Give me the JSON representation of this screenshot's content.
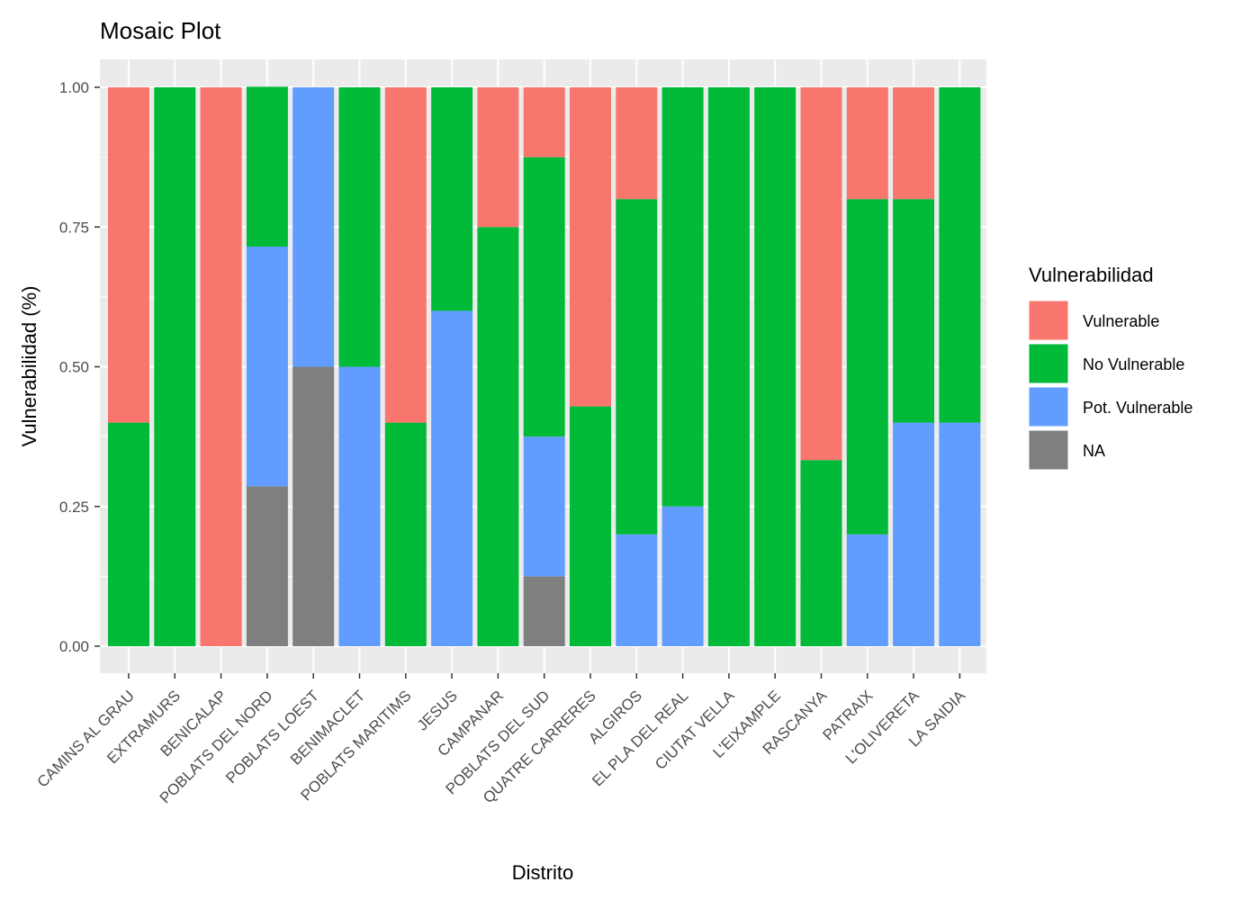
{
  "chart_data": {
    "type": "bar",
    "stacked": true,
    "title": "Mosaic Plot",
    "xlabel": "Distrito",
    "ylabel": "Vulnerabilidad (%)",
    "ylim": [
      0,
      1
    ],
    "yticks": [
      "0.00",
      "0.25",
      "0.50",
      "0.75",
      "1.00"
    ],
    "ytick_values": [
      0,
      0.25,
      0.5,
      0.75,
      1.0
    ],
    "grid": true,
    "legend_position": "right",
    "legend_title": "Vulnerabilidad",
    "categories": [
      "CAMINS AL GRAU",
      "EXTRAMURS",
      "BENICALAP",
      "POBLATS DEL NORD",
      "POBLATS LOEST",
      "BENIMACLET",
      "POBLATS MARITIMS",
      "JESUS",
      "CAMPANAR",
      "POBLATS DEL SUD",
      "QUATRE CARRERES",
      "ALGIROS",
      "EL PLA DEL REAL",
      "CIUTAT VELLA",
      "L'EIXAMPLE",
      "RASCANYA",
      "PATRAIX",
      "L'OLIVERETA",
      "LA SAIDIA"
    ],
    "series": [
      {
        "name": "Vulnerable",
        "color": "#F8766D",
        "values": [
          0.6,
          0,
          1.0,
          0,
          0,
          0,
          0.6,
          0,
          0.25,
          0.125,
          0.571,
          0.2,
          0,
          0,
          0,
          0.667,
          0.2,
          0.2,
          0
        ]
      },
      {
        "name": "No Vulnerable",
        "color": "#00BA38",
        "values": [
          0.4,
          1.0,
          0,
          0.286,
          0,
          0.5,
          0.4,
          0.4,
          0.75,
          0.5,
          0.429,
          0.6,
          0.75,
          1.0,
          1.0,
          0.333,
          0.6,
          0.4,
          0.6
        ]
      },
      {
        "name": "Pot. Vulnerable",
        "color": "#619CFF",
        "values": [
          0,
          0,
          0,
          0.429,
          0.5,
          0.5,
          0,
          0.6,
          0,
          0.25,
          0,
          0.2,
          0.25,
          0,
          0,
          0,
          0.2,
          0.4,
          0.4
        ]
      },
      {
        "name": "NA",
        "color": "#7F7F7F",
        "values": [
          0,
          0,
          0,
          0.286,
          0.5,
          0,
          0,
          0,
          0,
          0.125,
          0,
          0,
          0,
          0,
          0,
          0,
          0,
          0,
          0
        ]
      }
    ],
    "panel_background": "#EBEBEB",
    "grid_color": "#FFFFFF"
  }
}
